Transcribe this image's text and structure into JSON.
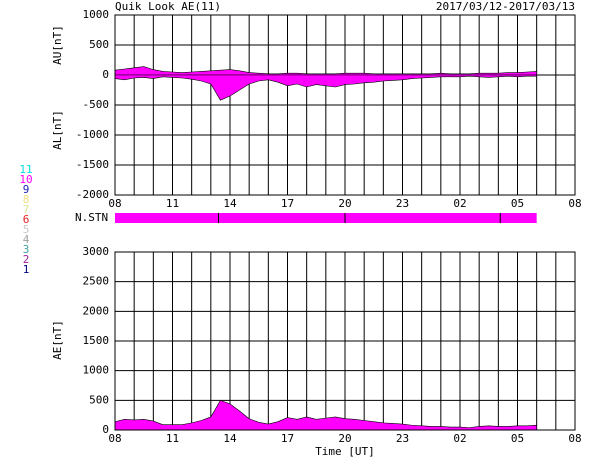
{
  "chart_data": [
    {
      "type": "area",
      "title": "Quik Look AE(11)",
      "date_range": "2017/03/12-2017/03/13",
      "x": [
        8,
        8.5,
        9,
        9.5,
        10,
        10.5,
        11,
        11.5,
        12,
        12.5,
        13,
        13.5,
        14,
        14.5,
        15,
        15.5,
        16,
        16.5,
        17,
        17.5,
        18,
        18.5,
        19,
        19.5,
        20,
        20.5,
        21,
        21.5,
        22,
        22.5,
        23,
        23.5,
        24,
        24.5,
        25,
        25.5,
        26,
        26.5,
        27,
        27.5,
        28,
        28.5,
        29,
        29.5,
        30
      ],
      "xlim": [
        8,
        32
      ],
      "xticks": [
        {
          "value": 8,
          "label": "08"
        },
        11,
        14,
        17,
        20,
        23,
        {
          "value": 26,
          "label": "02"
        },
        {
          "value": 29,
          "label": "05"
        },
        {
          "value": 32,
          "label": "08"
        }
      ],
      "ylim": [
        -2000,
        1000
      ],
      "yticks": [
        -2000,
        -1500,
        -1000,
        -500,
        0,
        500,
        1000
      ],
      "grid": true,
      "series": [
        {
          "name": "AU[nT]",
          "color": "#ff00ff",
          "values": [
            80,
            100,
            120,
            140,
            90,
            60,
            50,
            40,
            50,
            60,
            70,
            80,
            90,
            70,
            40,
            30,
            20,
            20,
            30,
            30,
            20,
            20,
            20,
            20,
            30,
            30,
            30,
            20,
            20,
            20,
            20,
            20,
            20,
            20,
            30,
            20,
            20,
            20,
            30,
            30,
            30,
            40,
            40,
            50,
            60
          ]
        },
        {
          "name": "AL[nT]",
          "color": "#ff00ff",
          "values": [
            -60,
            -80,
            -50,
            -40,
            -60,
            -30,
            -40,
            -50,
            -70,
            -100,
            -150,
            -420,
            -350,
            -250,
            -150,
            -100,
            -80,
            -120,
            -180,
            -150,
            -200,
            -160,
            -180,
            -200,
            -160,
            -150,
            -130,
            -120,
            -100,
            -90,
            -80,
            -60,
            -50,
            -40,
            -30,
            -30,
            -30,
            -20,
            -30,
            -40,
            -30,
            -20,
            -30,
            -20,
            -20
          ]
        }
      ],
      "station_label": "N.STN",
      "station_color": "#ff00ff",
      "legend": [
        {
          "label": "11",
          "color": "#00e0e0"
        },
        {
          "label": "10",
          "color": "#ff00ff"
        },
        {
          "label": "9",
          "color": "#2020c0"
        },
        {
          "label": "8",
          "color": "#f0e080"
        },
        {
          "label": "7",
          "color": "#d8e890"
        },
        {
          "label": "6",
          "color": "#e02020"
        },
        {
          "label": "5",
          "color": "#c8c8c8"
        },
        {
          "label": "4",
          "color": "#a0a0a0"
        },
        {
          "label": "3",
          "color": "#40a0a0"
        },
        {
          "label": "2",
          "color": "#a020a0"
        },
        {
          "label": "1",
          "color": "#000080"
        }
      ]
    },
    {
      "type": "area",
      "xlabel": "Time [UT]",
      "x": [
        8,
        8.5,
        9,
        9.5,
        10,
        10.5,
        11,
        11.5,
        12,
        12.5,
        13,
        13.5,
        14,
        14.5,
        15,
        15.5,
        16,
        16.5,
        17,
        17.5,
        18,
        18.5,
        19,
        19.5,
        20,
        20.5,
        21,
        21.5,
        22,
        22.5,
        23,
        23.5,
        24,
        24.5,
        25,
        25.5,
        26,
        26.5,
        27,
        27.5,
        28,
        28.5,
        29,
        29.5,
        30
      ],
      "xlim": [
        8,
        32
      ],
      "xticks": [
        {
          "value": 8,
          "label": "08"
        },
        11,
        14,
        17,
        20,
        23,
        {
          "value": 26,
          "label": "02"
        },
        {
          "value": 29,
          "label": "05"
        },
        {
          "value": 32,
          "label": "08"
        }
      ],
      "ylim": [
        0,
        3000
      ],
      "yticks": [
        0,
        500,
        1000,
        1500,
        2000,
        2500,
        3000
      ],
      "grid": true,
      "series": [
        {
          "name": "AE[nT]",
          "color": "#ff00ff",
          "values": [
            140,
            180,
            170,
            180,
            150,
            90,
            90,
            90,
            120,
            160,
            220,
            500,
            440,
            320,
            190,
            130,
            100,
            140,
            210,
            180,
            220,
            180,
            200,
            220,
            190,
            180,
            160,
            140,
            120,
            110,
            100,
            80,
            70,
            60,
            60,
            50,
            50,
            40,
            60,
            70,
            60,
            60,
            70,
            70,
            80
          ]
        }
      ]
    }
  ]
}
